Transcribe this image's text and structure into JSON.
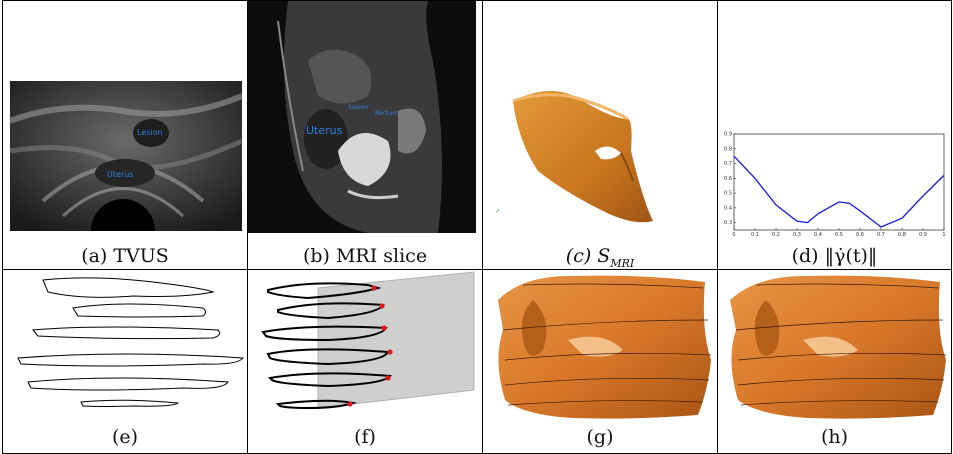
{
  "panels": [
    {
      "id": "a",
      "caption": "(a) TVUS",
      "labels": [
        "Lesion",
        "Uterus"
      ]
    },
    {
      "id": "b",
      "caption": "(b) MRI slice",
      "labels": [
        "Lesion",
        "Rectum",
        "Uterus"
      ]
    },
    {
      "id": "c",
      "caption": "(c) S",
      "caption_sub": "MRI"
    },
    {
      "id": "d",
      "caption": "(d) ‖γ̇(t)‖"
    },
    {
      "id": "e",
      "caption": "(e)"
    },
    {
      "id": "f",
      "caption": "(f)"
    },
    {
      "id": "g",
      "caption": "(g)"
    },
    {
      "id": "h",
      "caption": "(h)"
    }
  ],
  "chart_data": {
    "type": "line",
    "x": [
      0,
      0.1,
      0.2,
      0.3,
      0.35,
      0.4,
      0.5,
      0.55,
      0.6,
      0.7,
      0.8,
      0.9,
      1.0
    ],
    "series": [
      {
        "values": [
          0.75,
          0.6,
          0.42,
          0.31,
          0.3,
          0.36,
          0.44,
          0.43,
          0.38,
          0.27,
          0.33,
          0.48,
          0.62
        ]
      }
    ],
    "xticks": [
      "0",
      "0.1",
      "0.2",
      "0.3",
      "0.4",
      "0.5",
      "0.6",
      "0.7",
      "0.8",
      "0.9",
      "1"
    ],
    "yticks": [
      "0.3",
      "0.4",
      "0.5",
      "0.6",
      "0.7",
      "0.8",
      "0.9"
    ],
    "xlim": [
      0,
      1
    ],
    "ylim": [
      0.25,
      0.9
    ],
    "line_color": "#1a1ae0"
  },
  "colors": {
    "surface": "#d9862a",
    "surface_dark": "#a8581a",
    "plane": "#cfcfcf",
    "marker": "#e01a1a"
  }
}
